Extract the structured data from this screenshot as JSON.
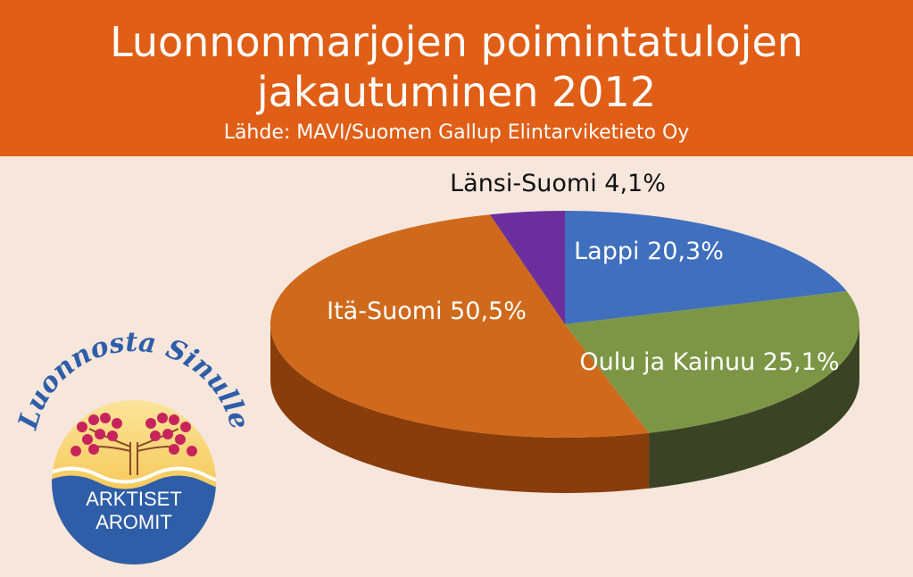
{
  "header": {
    "title_line1": "Luonnonmarjojen poimintatulojen",
    "title_line2": "jakautuminen 2012",
    "source": "Lähde: MAVI/Suomen Gallup Elintarviketieto Oy"
  },
  "chart_data": {
    "type": "pie",
    "title": "Luonnonmarjojen poimintatulojen jakautuminen 2012",
    "subtitle": "Lähde: MAVI/Suomen Gallup Elintarviketieto Oy",
    "slices": [
      {
        "label": "Lappi 20,3%",
        "value": 20.3,
        "color": "#3f6fbd",
        "side": "#2a4a80"
      },
      {
        "label": "Oulu ja Kainuu 25,1%",
        "value": 25.1,
        "color": "#7c9646",
        "side": "#3a4424"
      },
      {
        "label": "Itä-Suomi 50,5%",
        "value": 50.5,
        "color": "#cf6a1c",
        "side": "#8a3d0c"
      },
      {
        "label": "Länsi-Suomi 4,1%",
        "value": 4.1,
        "color": "#6a2f9c",
        "side": "#3f1b5e"
      }
    ]
  },
  "logo": {
    "arc_text": "Luonnosta Sinulle",
    "line1": "ARKTISET",
    "line2": "AROMIT"
  },
  "colors": {
    "header_bg": "#e05e16",
    "page_bg": "#f7e6dc",
    "logo_blue": "#2f5ea8",
    "logo_yellow": "#f5c33b",
    "berry": "#c8245c"
  }
}
